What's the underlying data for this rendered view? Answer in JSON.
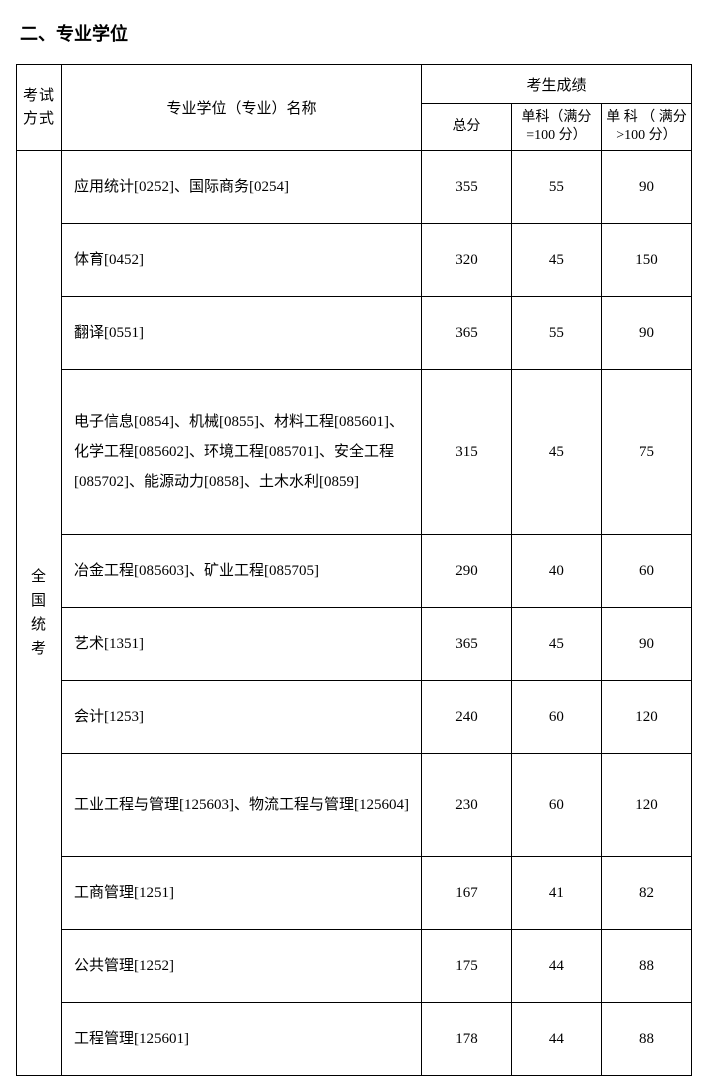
{
  "title": "二、专业学位",
  "table": {
    "headers": {
      "method": "考试方式",
      "name": "专业学位（专业）名称",
      "scores_group": "考生成绩",
      "total": "总分",
      "subject_le100": "单科（满分=100 分）",
      "subject_gt100": "单 科 （ 满分>100 分）"
    },
    "method_label": "全国统考",
    "rows": [
      {
        "name": "应用统计[0252]、国际商务[0254]",
        "total": "355",
        "s1": "55",
        "s2": "90",
        "cls": "normal-row"
      },
      {
        "name": "体育[0452]",
        "total": "320",
        "s1": "45",
        "s2": "150",
        "cls": "normal-row"
      },
      {
        "name": "翻译[0551]",
        "total": "365",
        "s1": "55",
        "s2": "90",
        "cls": "normal-row"
      },
      {
        "name": "电子信息[0854]、机械[0855]、材料工程[085601]、化学工程[085602]、环境工程[085701]、安全工程[085702]、能源动力[0858]、土木水利[0859]",
        "total": "315",
        "s1": "45",
        "s2": "75",
        "cls": "tall-row"
      },
      {
        "name": "冶金工程[085603]、矿业工程[085705]",
        "total": "290",
        "s1": "40",
        "s2": "60",
        "cls": "normal-row"
      },
      {
        "name": "艺术[1351]",
        "total": "365",
        "s1": "45",
        "s2": "90",
        "cls": "normal-row"
      },
      {
        "name": "会计[1253]",
        "total": "240",
        "s1": "60",
        "s2": "120",
        "cls": "normal-row"
      },
      {
        "name": "工业工程与管理[125603]、物流工程与管理[125604]",
        "total": "230",
        "s1": "60",
        "s2": "120",
        "cls": "two-line-row"
      },
      {
        "name": "工商管理[1251]",
        "total": "167",
        "s1": "41",
        "s2": "82",
        "cls": "normal-row"
      },
      {
        "name": "公共管理[1252]",
        "total": "175",
        "s1": "44",
        "s2": "88",
        "cls": "normal-row"
      },
      {
        "name": "工程管理[125601]",
        "total": "178",
        "s1": "44",
        "s2": "88",
        "cls": "normal-row"
      }
    ]
  }
}
